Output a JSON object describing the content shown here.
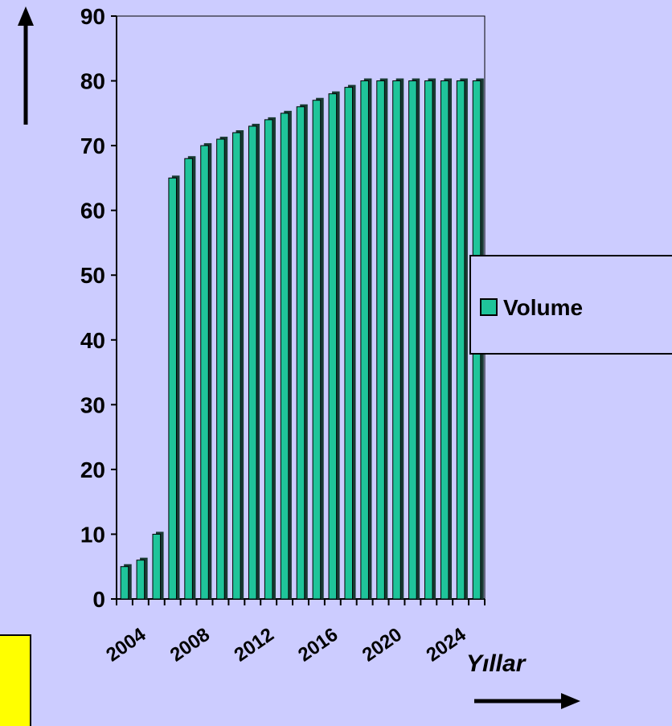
{
  "chart_data": {
    "type": "bar",
    "categories": [
      "2004",
      null,
      null,
      null,
      "2008",
      null,
      null,
      null,
      "2012",
      null,
      null,
      null,
      "2016",
      null,
      null,
      null,
      "2020",
      null,
      null,
      null,
      "2024",
      null,
      null
    ],
    "series": [
      {
        "name": "Volume",
        "color": "#1fc49a",
        "values": [
          5,
          6,
          10,
          65,
          68,
          70,
          71,
          72,
          73,
          74,
          75,
          76,
          77,
          78,
          79,
          80,
          80,
          80,
          80,
          80,
          80,
          80,
          80
        ]
      }
    ],
    "ylim": [
      0,
      90
    ],
    "yticks": [
      0,
      10,
      20,
      30,
      40,
      50,
      60,
      70,
      80,
      90
    ],
    "xlabel": "Yıllar",
    "legend": "right"
  }
}
